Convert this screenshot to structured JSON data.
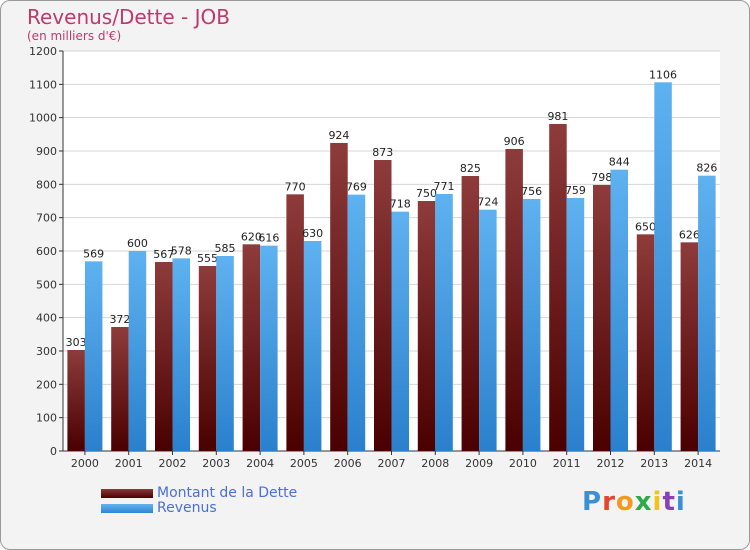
{
  "title": "Revenus/Dette - JOB",
  "subtitle": "(en milliers d'€)",
  "logo_text": "Proxiti",
  "colors": {
    "dette": "#7a2020",
    "revenus": "#3e9ae0",
    "title": "#c0396b",
    "legend_text": "#4a6fd8"
  },
  "chart_data": {
    "type": "bar",
    "categories": [
      "2000",
      "2001",
      "2002",
      "2003",
      "2004",
      "2005",
      "2006",
      "2007",
      "2008",
      "2009",
      "2010",
      "2011",
      "2012",
      "2013",
      "2014"
    ],
    "series": [
      {
        "name": "Montant de la Dette",
        "values": [
          303,
          372,
          567,
          555,
          620,
          770,
          924,
          873,
          750,
          825,
          906,
          981,
          798,
          650,
          626
        ]
      },
      {
        "name": "Revenus",
        "values": [
          569,
          600,
          578,
          585,
          616,
          630,
          769,
          718,
          771,
          724,
          756,
          759,
          844,
          1106,
          826
        ]
      }
    ],
    "ylim": [
      0,
      1200
    ],
    "yticks": [
      0,
      100,
      200,
      300,
      400,
      500,
      600,
      700,
      800,
      900,
      1000,
      1100,
      1200
    ],
    "grid": true,
    "legend": "bottom-left"
  }
}
